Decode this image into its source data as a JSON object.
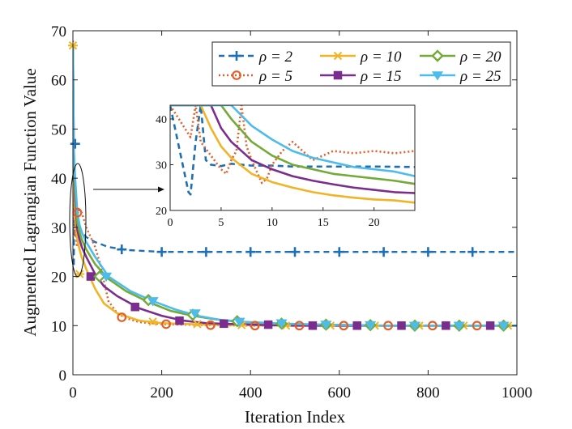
{
  "chart_data": {
    "type": "line",
    "xlabel": "Iteration Index",
    "ylabel": "Augmented Lagrangian Function Value",
    "xlim": [
      0,
      1000
    ],
    "ylim": [
      0,
      70
    ],
    "xticks": [
      0,
      200,
      400,
      600,
      800,
      1000
    ],
    "yticks": [
      0,
      10,
      20,
      30,
      40,
      50,
      60,
      70
    ],
    "legend_position": "top-right",
    "series": [
      {
        "name": "ρ = 2",
        "rho": "2",
        "color": "#1f6fb4",
        "dash": "dash",
        "marker": "plus",
        "x": [
          0,
          1,
          2,
          3,
          4,
          5,
          7,
          10,
          15,
          20,
          30,
          50,
          80,
          120,
          200,
          300,
          500,
          1000
        ],
        "y": [
          27,
          46,
          22,
          40,
          31,
          30,
          31,
          30,
          29.6,
          29.2,
          28,
          27,
          26,
          25.4,
          25,
          25,
          25,
          25
        ]
      },
      {
        "name": "ρ = 5",
        "rho": "5",
        "color": "#e0602b",
        "dash": "dot",
        "marker": "circle",
        "x": [
          0,
          2,
          3,
          5,
          6,
          8,
          9,
          10,
          12,
          15,
          20,
          30,
          40,
          50,
          60,
          80,
          100,
          120,
          150,
          200,
          300,
          400,
          1000
        ],
        "y": [
          68,
          35,
          30,
          28,
          32,
          27,
          26,
          30,
          34,
          33,
          33,
          30,
          28,
          26,
          23,
          15,
          12.5,
          11.5,
          10.7,
          10.3,
          10.1,
          10,
          10
        ]
      },
      {
        "name": "ρ = 10",
        "rho": "10",
        "color": "#f0b427",
        "dash": "solid",
        "marker": "star",
        "x": [
          0,
          1,
          3,
          5,
          10,
          15,
          20,
          25,
          30,
          50,
          70,
          100,
          150,
          200,
          300,
          400,
          500,
          700,
          1000
        ],
        "y": [
          67,
          45,
          38,
          32,
          27.5,
          25.5,
          23.8,
          22.8,
          21.5,
          17.5,
          14.5,
          12.5,
          11,
          10.5,
          10.2,
          10.1,
          10,
          10,
          10
        ]
      },
      {
        "name": "ρ = 15",
        "rho": "15",
        "color": "#7b2d8e",
        "dash": "solid",
        "marker": "square",
        "x": [
          0,
          2,
          5,
          10,
          15,
          20,
          25,
          30,
          50,
          70,
          100,
          150,
          200,
          250,
          300,
          400,
          500,
          700,
          1000
        ],
        "y": [
          67,
          45,
          36,
          29.5,
          27.5,
          26,
          25,
          24,
          20.5,
          18,
          16,
          13.5,
          12,
          11,
          10.5,
          10.2,
          10,
          10,
          10
        ]
      },
      {
        "name": "ρ = 20",
        "rho": "20",
        "color": "#73aa38",
        "dash": "solid",
        "marker": "diamond",
        "x": [
          0,
          2,
          5,
          10,
          15,
          20,
          25,
          30,
          50,
          80,
          120,
          170,
          220,
          270,
          320,
          370,
          450,
          550,
          700,
          1000
        ],
        "y": [
          67,
          45,
          38,
          31,
          29,
          27.5,
          26.5,
          25.5,
          22.5,
          19.5,
          17,
          14.8,
          13,
          12,
          11.3,
          10.8,
          10.4,
          10.2,
          10,
          10
        ]
      },
      {
        "name": "ρ = 25",
        "rho": "25",
        "color": "#4dbcea",
        "dash": "solid",
        "marker": "triangle-down",
        "x": [
          0,
          2,
          5,
          10,
          15,
          20,
          25,
          30,
          50,
          80,
          130,
          180,
          230,
          280,
          330,
          380,
          470,
          560,
          700,
          1000
        ],
        "y": [
          67,
          46,
          40,
          33,
          30.5,
          29,
          28,
          27,
          24,
          20,
          17,
          15,
          13.3,
          12,
          11.2,
          10.8,
          10.4,
          10.2,
          10,
          10
        ]
      }
    ],
    "markers": {
      "ρ = 2": {
        "x": [
          5,
          110,
          200,
          300,
          400,
          500,
          600,
          700,
          800,
          900
        ],
        "y": [
          47,
          25.5,
          25,
          25,
          25,
          25,
          25,
          25,
          25,
          25
        ]
      },
      "ρ = 5": {
        "x": [
          10,
          110,
          210,
          310,
          410,
          510,
          610,
          710,
          810,
          910
        ],
        "y": [
          33,
          11.7,
          10.3,
          10.1,
          10,
          10,
          10,
          10,
          10,
          10
        ]
      },
      "ρ = 10": {
        "x": [
          0,
          15,
          180,
          280,
          380,
          480,
          580,
          680,
          780,
          880,
          980
        ],
        "y": [
          67,
          20.5,
          10.8,
          10.3,
          10.1,
          10,
          10,
          10,
          10,
          10,
          10
        ]
      },
      "ρ = 15": {
        "x": [
          40,
          140,
          240,
          340,
          440,
          540,
          640,
          740,
          840,
          940
        ],
        "y": [
          20,
          13.8,
          11,
          10.4,
          10.2,
          10,
          10,
          10,
          10,
          10
        ]
      },
      "ρ = 20": {
        "x": [
          60,
          170,
          270,
          370,
          470,
          570,
          670,
          770,
          870,
          970
        ],
        "y": [
          20,
          15.2,
          12.2,
          10.9,
          10.4,
          10.2,
          10.1,
          10,
          10,
          10
        ]
      },
      "ρ = 25": {
        "x": [
          75,
          180,
          275,
          375,
          470,
          570,
          670,
          770,
          870,
          970
        ],
        "y": [
          20,
          15,
          12.5,
          10.8,
          10.5,
          10.2,
          10.1,
          10,
          10,
          10
        ]
      }
    },
    "inset": {
      "xlim": [
        0,
        24
      ],
      "ylim": [
        20,
        43
      ],
      "xticks": [
        0,
        5,
        10,
        15,
        20
      ],
      "yticks": [
        20,
        30,
        40
      ],
      "zoom_ellipse_center": [
        12,
        33
      ],
      "series": [
        {
          "name": "ρ = 2",
          "x": [
            0,
            1.8,
            2.0,
            2.5,
            3.0,
            3.5,
            4,
            5,
            6,
            8,
            10,
            12,
            15,
            20,
            24
          ],
          "y": [
            43,
            24,
            23.5,
            35,
            43,
            31,
            30,
            29.7,
            30.2,
            29.8,
            29.8,
            29.6,
            29.6,
            29.6,
            29.5
          ]
        },
        {
          "name": "ρ = 5",
          "x": [
            0,
            2,
            2.5,
            3,
            4,
            5,
            5.5,
            6,
            6.5,
            7,
            7.5,
            8,
            9,
            9.5,
            10,
            11,
            12,
            13,
            14,
            15,
            16,
            18,
            20,
            22,
            24
          ],
          "y": [
            43,
            36,
            43,
            35,
            32,
            29,
            28,
            31,
            33,
            43,
            34,
            31,
            26,
            27,
            30,
            33,
            35,
            33,
            31,
            32,
            33,
            32.5,
            33,
            32.5,
            33
          ]
        },
        {
          "name": "ρ = 10",
          "x": [
            0,
            3,
            4,
            5,
            6,
            8,
            10,
            12,
            14,
            16,
            18,
            20,
            22,
            24
          ],
          "y": [
            43,
            43,
            38,
            34,
            31.5,
            28,
            26.2,
            25,
            24,
            23.3,
            22.8,
            22.4,
            22.2,
            21.7
          ]
        },
        {
          "name": "ρ = 15",
          "x": [
            0,
            4,
            5,
            6,
            8,
            10,
            12,
            14,
            16,
            18,
            20,
            22,
            24
          ],
          "y": [
            43,
            43,
            38,
            35,
            31,
            29,
            27.5,
            26.5,
            25.7,
            25,
            24.5,
            24,
            23.8
          ]
        },
        {
          "name": "ρ = 20",
          "x": [
            0,
            5,
            6,
            8,
            10,
            12,
            14,
            16,
            18,
            20,
            22,
            24
          ],
          "y": [
            43,
            43,
            40,
            35,
            32,
            30,
            29,
            28,
            27.5,
            27,
            26.5,
            25.8
          ]
        },
        {
          "name": "ρ = 25",
          "x": [
            0,
            6,
            8,
            10,
            12,
            14,
            16,
            18,
            20,
            22,
            24
          ],
          "y": [
            43,
            43,
            38.5,
            35.5,
            33,
            31.5,
            30.5,
            29.5,
            29,
            28.5,
            27.5
          ]
        }
      ]
    }
  }
}
